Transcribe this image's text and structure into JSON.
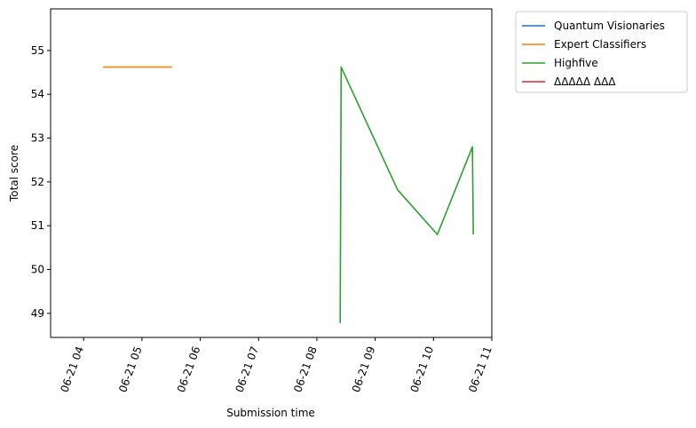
{
  "chart_data": {
    "type": "line",
    "title": "",
    "xlabel": "Submission time",
    "ylabel": "Total score",
    "x_tick_labels": [
      "06-21 04",
      "06-21 05",
      "06-21 06",
      "06-21 07",
      "06-21 08",
      "06-21 09",
      "06-21 10",
      "06-21 11"
    ],
    "y_ticks": [
      49,
      50,
      51,
      52,
      53,
      54,
      55
    ],
    "xlim": [
      "06-21 03:26",
      "06-21 11:00"
    ],
    "ylim": [
      48.45,
      55.95
    ],
    "grid": false,
    "legend_position": "outside-top-right",
    "series": [
      {
        "name": "Quantum Visionaries",
        "color": "#1f77b4",
        "x": [],
        "y": []
      },
      {
        "name": "Expert Classifiers",
        "color": "#ff7f0e",
        "x": [
          "06-21 04:20",
          "06-21 05:31"
        ],
        "y": [
          54.62,
          54.62
        ]
      },
      {
        "name": "Highfive",
        "color": "#2ca02c",
        "x": [
          "06-21 08:24",
          "06-21 08:25",
          "06-21 09:23",
          "06-21 10:04",
          "06-21 10:40",
          "06-21 10:41"
        ],
        "y": [
          48.78,
          54.62,
          51.82,
          50.8,
          52.8,
          50.8
        ]
      },
      {
        "name": "ΔΔΔΔΔ ΔΔΔ",
        "color": "#d62728",
        "x": [],
        "y": []
      }
    ]
  }
}
